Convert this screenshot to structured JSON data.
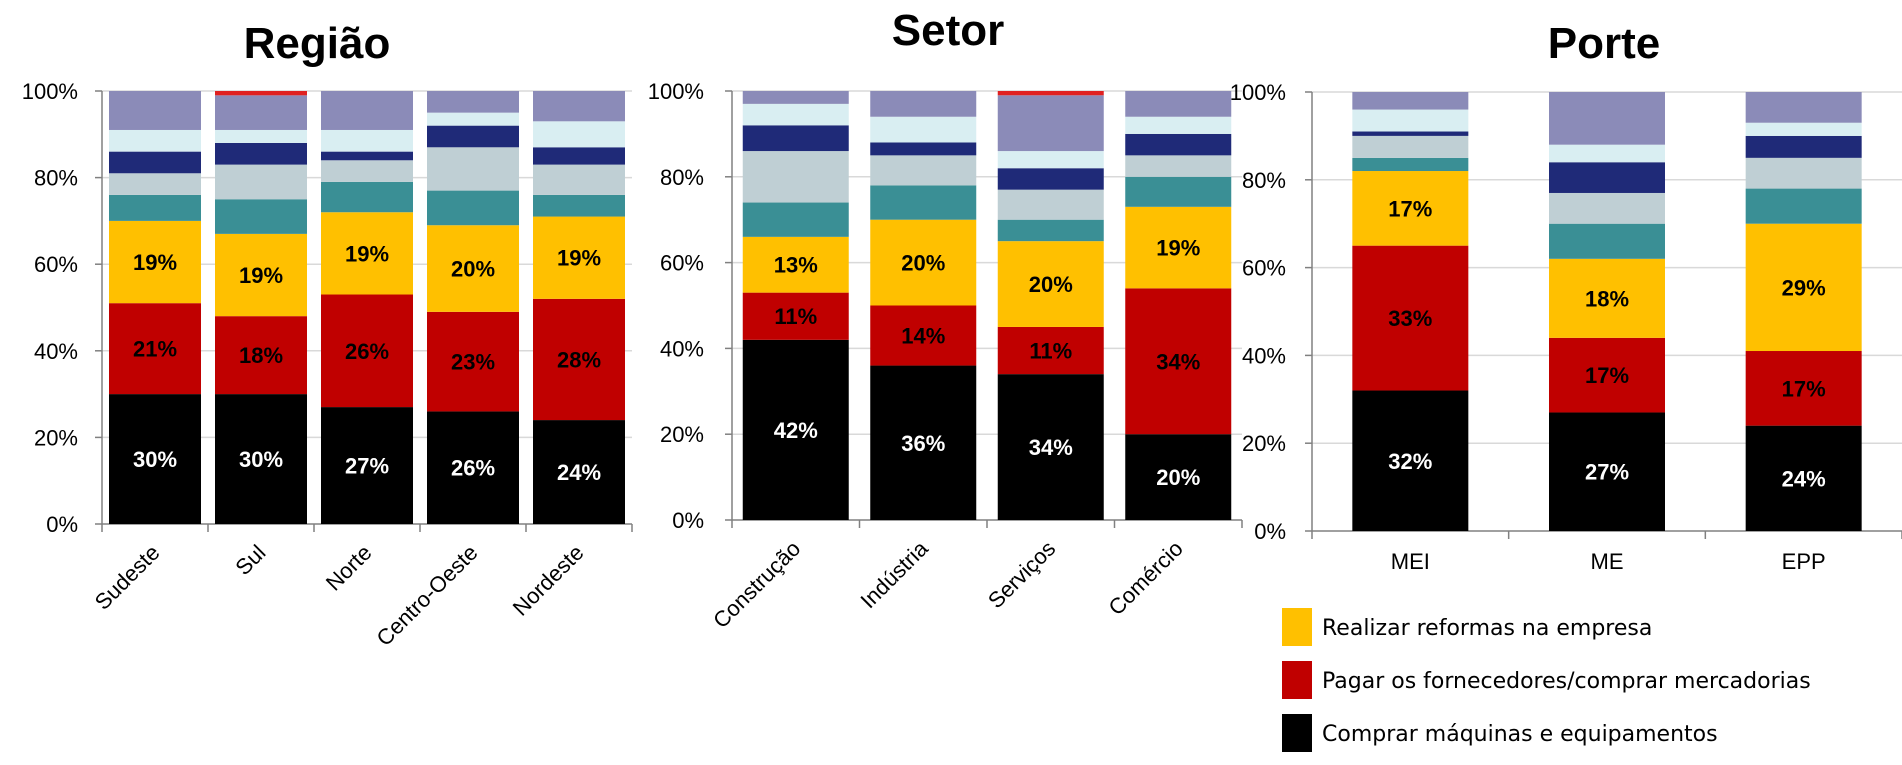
{
  "chart_data": [
    {
      "type": "bar",
      "stacked": true,
      "title": "Região",
      "categories": [
        "Sudeste",
        "Sul",
        "Norte",
        "Centro-Oeste",
        "Nordeste"
      ],
      "ylim": [
        0,
        100
      ],
      "yticks": [
        "0%",
        "20%",
        "40%",
        "60%",
        "80%",
        "100%"
      ],
      "grid": true,
      "series": [
        {
          "name": "Comprar máquinas e equipamentos",
          "color": "#000000",
          "values": [
            30,
            30,
            27,
            26,
            24
          ],
          "labels": [
            "30%",
            "30%",
            "27%",
            "26%",
            "24%"
          ],
          "label_color": "#ffffff"
        },
        {
          "name": "Pagar os fornecedores/comprar mercadorias",
          "color": "#c00000",
          "values": [
            21,
            18,
            26,
            23,
            28
          ],
          "labels": [
            "21%",
            "18%",
            "26%",
            "23%",
            "28%"
          ],
          "label_color": "#000000"
        },
        {
          "color": "#ffc000",
          "values": [
            19,
            19,
            19,
            20,
            19
          ],
          "labels": [
            "19%",
            "19%",
            "19%",
            "20%",
            "19%"
          ],
          "label_color": "#000000"
        },
        {
          "color": "#3a8f95",
          "values": [
            6,
            8,
            7,
            8,
            5
          ]
        },
        {
          "color": "#bfcfd4",
          "values": [
            5,
            8,
            5,
            10,
            7
          ]
        },
        {
          "color": "#1f2a78",
          "values": [
            5,
            5,
            2,
            5,
            4
          ]
        },
        {
          "color": "#d9eef2",
          "values": [
            5,
            3,
            5,
            3,
            6
          ]
        },
        {
          "color": "#8b8bb8",
          "values": [
            9,
            8,
            9,
            5,
            7
          ]
        },
        {
          "color": "#e02020",
          "values": [
            0,
            1,
            0,
            0,
            0
          ]
        }
      ]
    },
    {
      "type": "bar",
      "stacked": true,
      "title": "Setor",
      "categories": [
        "Construção",
        "Indústria",
        "Serviços",
        "Comércio"
      ],
      "ylim": [
        0,
        100
      ],
      "yticks": [
        "0%",
        "20%",
        "40%",
        "60%",
        "80%",
        "100%"
      ],
      "grid": true,
      "series": [
        {
          "name": "Comprar máquinas e equipamentos",
          "color": "#000000",
          "values": [
            42,
            36,
            34,
            20
          ],
          "labels": [
            "42%",
            "36%",
            "34%",
            "20%"
          ],
          "label_color": "#ffffff"
        },
        {
          "name": "Pagar os fornecedores/comprar mercadorias",
          "color": "#c00000",
          "values": [
            11,
            14,
            11,
            34
          ],
          "labels": [
            "11%",
            "14%",
            "11%",
            "34%"
          ],
          "label_color": "#000000"
        },
        {
          "color": "#ffc000",
          "values": [
            13,
            20,
            20,
            19
          ],
          "labels": [
            "13%",
            "20%",
            "20%",
            "19%"
          ],
          "label_color": "#000000"
        },
        {
          "color": "#3a8f95",
          "values": [
            8,
            8,
            5,
            7
          ]
        },
        {
          "color": "#bfcfd4",
          "values": [
            12,
            7,
            7,
            5
          ]
        },
        {
          "color": "#1f2a78",
          "values": [
            6,
            3,
            5,
            5
          ]
        },
        {
          "color": "#d9eef2",
          "values": [
            5,
            6,
            4,
            4
          ]
        },
        {
          "color": "#8b8bb8",
          "values": [
            3,
            6,
            13,
            6
          ]
        },
        {
          "color": "#e02020",
          "values": [
            0,
            0,
            1,
            0
          ]
        }
      ]
    },
    {
      "type": "bar",
      "stacked": true,
      "title": "Porte",
      "categories": [
        "MEI",
        "ME",
        "EPP"
      ],
      "ylim": [
        0,
        100
      ],
      "yticks": [
        "0%",
        "20%",
        "40%",
        "60%",
        "80%",
        "100%"
      ],
      "grid": true,
      "series": [
        {
          "name": "Comprar máquinas e equipamentos",
          "color": "#000000",
          "values": [
            32,
            27,
            24
          ],
          "labels": [
            "32%",
            "27%",
            "24%"
          ],
          "label_color": "#ffffff"
        },
        {
          "name": "Pagar os fornecedores/comprar mercadorias",
          "color": "#c00000",
          "values": [
            33,
            17,
            17
          ],
          "labels": [
            "33%",
            "17%",
            "17%"
          ],
          "label_color": "#000000"
        },
        {
          "name": "Realizar reformas na empresa",
          "color": "#ffc000",
          "values": [
            17,
            18,
            29
          ],
          "labels": [
            "17%",
            "18%",
            "29%"
          ],
          "label_color": "#000000"
        },
        {
          "color": "#3a8f95",
          "values": [
            3,
            8,
            8
          ]
        },
        {
          "color": "#bfcfd4",
          "values": [
            5,
            7,
            7
          ]
        },
        {
          "color": "#1f2a78",
          "values": [
            1,
            7,
            5
          ]
        },
        {
          "color": "#d9eef2",
          "values": [
            5,
            4,
            3
          ]
        },
        {
          "color": "#8b8bb8",
          "values": [
            4,
            12,
            7
          ]
        }
      ]
    }
  ],
  "legend": {
    "items": [
      {
        "label": "Realizar reformas na empresa",
        "color": "#ffc000"
      },
      {
        "label": "Pagar os fornecedores/comprar mercadorias",
        "color": "#c00000"
      },
      {
        "label": "Comprar máquinas e equipamentos",
        "color": "#000000"
      }
    ]
  }
}
